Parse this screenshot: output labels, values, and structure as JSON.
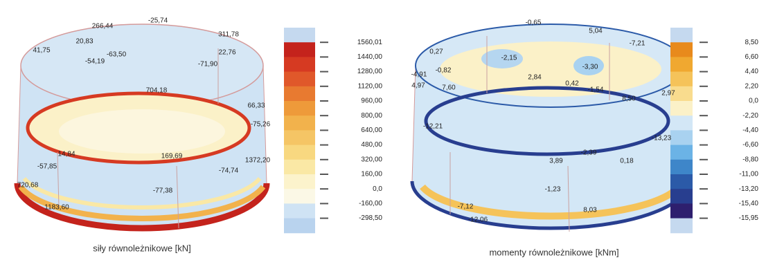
{
  "chart_data": [
    {
      "type": "contour",
      "title": "siły równoleżnikowe [kN]",
      "colorbar": {
        "ticks": [
          {
            "value": 1560.01,
            "label": "1560,01"
          },
          {
            "value": 1440,
            "label": "1440,00"
          },
          {
            "value": 1280,
            "label": "1280,00"
          },
          {
            "value": 1120,
            "label": "1120,00"
          },
          {
            "value": 960,
            "label": "960,00"
          },
          {
            "value": 800,
            "label": "800,00"
          },
          {
            "value": 640,
            "label": "640,00"
          },
          {
            "value": 480,
            "label": "480,00"
          },
          {
            "value": 320,
            "label": "320,00"
          },
          {
            "value": 160,
            "label": "160,00"
          },
          {
            "value": 0,
            "label": "0,0"
          },
          {
            "value": -160,
            "label": "-160,00"
          },
          {
            "value": -298.5,
            "label": "-298,50"
          }
        ],
        "colors": [
          "#c5d9ef",
          "#c4231c",
          "#d63a22",
          "#e0582a",
          "#e87a30",
          "#ee9a3a",
          "#f2b24c",
          "#f5c565",
          "#f8d880",
          "#fae8a5",
          "#fcf3cc",
          "#fbf8e6",
          "#cfe3f4",
          "#b9d3ee"
        ]
      },
      "annotations": [
        {
          "value": 266.44,
          "label": "266,44"
        },
        {
          "value": -25.74,
          "label": "-25,74"
        },
        {
          "value": 311.78,
          "label": "311,78"
        },
        {
          "value": 41.75,
          "label": "41,75"
        },
        {
          "value": 20.83,
          "label": "20,83"
        },
        {
          "value": -63.5,
          "label": "-63,50"
        },
        {
          "value": -54.19,
          "label": "-54,19"
        },
        {
          "value": 22.76,
          "label": "22,76"
        },
        {
          "value": -71.9,
          "label": "-71,90"
        },
        {
          "value": 704.18,
          "label": "704,18"
        },
        {
          "value": 66.33,
          "label": "66,33"
        },
        {
          "value": -75.26,
          "label": "-75,26"
        },
        {
          "value": 14.84,
          "label": "14,84"
        },
        {
          "value": -57.85,
          "label": "-57,85"
        },
        {
          "value": 169.69,
          "label": "169,69"
        },
        {
          "value": -74.74,
          "label": "-74,74"
        },
        {
          "value": -77.38,
          "label": "-77,38"
        },
        {
          "value": 1183.6,
          "label": "1183,60"
        },
        {
          "value": 1372.2,
          "label": "1372,20"
        },
        {
          "value": 720.68,
          "label": "720,68"
        }
      ]
    },
    {
      "type": "contour",
      "title": "momenty równoleżnikowe [kNm]",
      "colorbar": {
        "ticks": [
          {
            "value": 8.5,
            "label": "8,50"
          },
          {
            "value": 6.6,
            "label": "6,60"
          },
          {
            "value": 4.4,
            "label": "4,40"
          },
          {
            "value": 2.2,
            "label": "2,20"
          },
          {
            "value": 0,
            "label": "0,0"
          },
          {
            "value": -2.2,
            "label": "-2,20"
          },
          {
            "value": -4.4,
            "label": "-4,40"
          },
          {
            "value": -6.6,
            "label": "-6,60"
          },
          {
            "value": -8.8,
            "label": "-8,80"
          },
          {
            "value": -11,
            "label": "-11,00"
          },
          {
            "value": -13.2,
            "label": "-13,20"
          },
          {
            "value": -15.4,
            "label": "-15,40"
          },
          {
            "value": -15.95,
            "label": "-15,95"
          }
        ],
        "colors": [
          "#c5d9ef",
          "#e88a1c",
          "#f0a830",
          "#f5c35a",
          "#f9dc8e",
          "#fbf1c8",
          "#d3e7f6",
          "#a9d2f0",
          "#6bb3e6",
          "#3e86c9",
          "#2b5aa8",
          "#283e8f",
          "#2e1f6e",
          "#c5d9ef"
        ]
      },
      "annotations": [
        {
          "value": -0.65,
          "label": "-0,65"
        },
        {
          "value": 0.27,
          "label": "0,27"
        },
        {
          "value": -0.82,
          "label": "-0,82"
        },
        {
          "value": -2.15,
          "label": "-2,15"
        },
        {
          "value": -3.3,
          "label": "-3,30"
        },
        {
          "value": 5.04,
          "label": "5,04"
        },
        {
          "value": -7.21,
          "label": "-7,21"
        },
        {
          "value": 7.6,
          "label": "7,60"
        },
        {
          "value": 2.84,
          "label": "2,84"
        },
        {
          "value": 0.42,
          "label": "0,42"
        },
        {
          "value": -1.54,
          "label": "-1,54"
        },
        {
          "value": 8.5,
          "label": "8,50"
        },
        {
          "value": 2.97,
          "label": "2,97"
        },
        {
          "value": -12.21,
          "label": "-12,21"
        },
        {
          "value": -13.23,
          "label": "-13,23"
        },
        {
          "value": -1.23,
          "label": "-1,23"
        },
        {
          "value": 8.03,
          "label": "8,03"
        },
        {
          "value": 0.18,
          "label": "0,18"
        },
        {
          "value": 3.89,
          "label": "3,89"
        },
        {
          "value": -2.39,
          "label": "-2,39"
        },
        {
          "value": -7.12,
          "label": "-7,12"
        },
        {
          "value": -12.06,
          "label": "-12,06"
        },
        {
          "value": -4.91,
          "label": "-4,91"
        },
        {
          "value": 4.97,
          "label": "4,97"
        }
      ]
    }
  ]
}
